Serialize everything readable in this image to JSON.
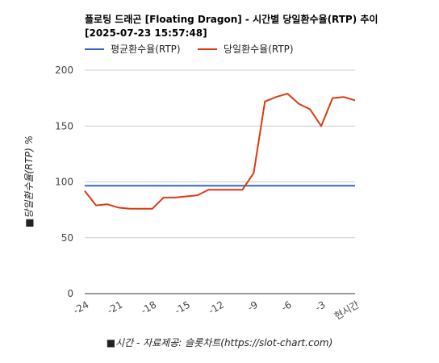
{
  "chart_data": {
    "type": "line",
    "title_line1": "플로팅 드래곤 [Floating Dragon] - 시간별 당일환수율(RTP) 추이",
    "title_line2": "[2025-07-23 15:57:48]",
    "xlabel": "■시간 - 자료제공: 슬롯차트(https://slot-chart.com)",
    "ylabel": "■당일환수율(RTP) %",
    "ylim": [
      0,
      200
    ],
    "yticks": [
      0,
      50,
      100,
      150,
      200
    ],
    "xticks": [
      {
        "x": -24,
        "label": "-24"
      },
      {
        "x": -21,
        "label": "-21"
      },
      {
        "x": -18,
        "label": "-18"
      },
      {
        "x": -15,
        "label": "-15"
      },
      {
        "x": -12,
        "label": "-12"
      },
      {
        "x": -9,
        "label": "-9"
      },
      {
        "x": -6,
        "label": "-6"
      },
      {
        "x": -3,
        "label": "-3"
      },
      {
        "x": 0,
        "label": "현시간"
      }
    ],
    "xlim": [
      -24,
      0
    ],
    "legend_position": "top-left",
    "grid": true,
    "series": [
      {
        "name": "평균환수율(RTP)",
        "color": "#3366cc",
        "x": [
          -24,
          0
        ],
        "values": [
          96.5,
          96.5
        ]
      },
      {
        "name": "당일환수율(RTP)",
        "color": "#dc3912",
        "x": [
          -24,
          -23,
          -22,
          -21,
          -20,
          -19,
          -18,
          -17,
          -16,
          -15,
          -14,
          -13,
          -12,
          -11,
          -10,
          -9,
          -8,
          -7,
          -6,
          -5,
          -4,
          -3,
          -2,
          -1,
          0
        ],
        "values": [
          92,
          79,
          80,
          77,
          76,
          76,
          76,
          86,
          86,
          87,
          88,
          93,
          93,
          93,
          93,
          108,
          172,
          176,
          179,
          170,
          165,
          150,
          175,
          176,
          173
        ]
      }
    ]
  }
}
